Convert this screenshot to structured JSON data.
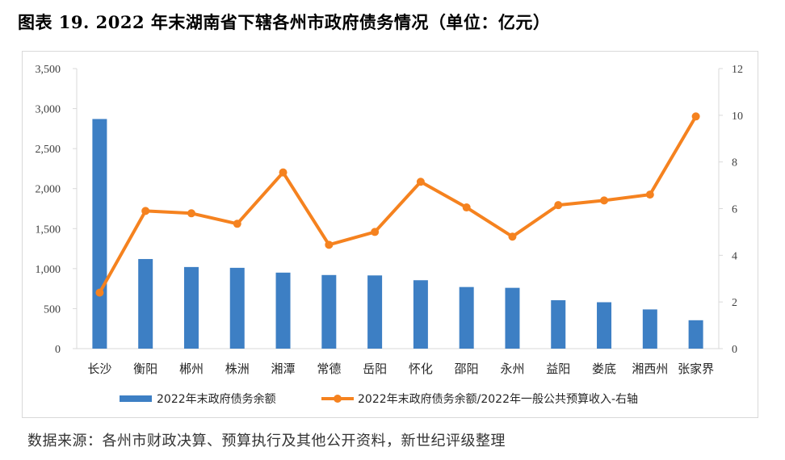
{
  "title": "图表 19. 2022 年末湖南省下辖各州市政府债务情况（单位：亿元）",
  "source": "数据来源：各州市财政决算、预算执行及其他公开资料，新世纪评级整理",
  "colors": {
    "bar": "#3d7fc4",
    "line": "#f5821f",
    "axis": "#d9d9d9",
    "text": "#404040"
  },
  "chart_data": {
    "type": "bar+line",
    "categories": [
      "长沙",
      "衡阳",
      "郴州",
      "株洲",
      "湘潭",
      "常德",
      "岳阳",
      "怀化",
      "邵阳",
      "永州",
      "益阳",
      "娄底",
      "湘西州",
      "张家界"
    ],
    "series": [
      {
        "name": "2022年末政府债务余额",
        "type": "bar",
        "axis": "left",
        "values": [
          2870,
          1120,
          1020,
          1010,
          950,
          920,
          915,
          855,
          770,
          760,
          605,
          580,
          490,
          355
        ]
      },
      {
        "name": "2022年末政府债务余额/2022年一般公共预算收入-右轴",
        "type": "line",
        "axis": "right",
        "values": [
          2.4,
          5.9,
          5.8,
          5.35,
          7.55,
          4.45,
          5.0,
          7.15,
          6.05,
          4.8,
          6.15,
          6.35,
          6.6,
          9.95
        ]
      }
    ],
    "y_left": {
      "min": 0,
      "max": 3500,
      "ticks": [
        "0",
        "500",
        "1,000",
        "1,500",
        "2,000",
        "2,500",
        "3,000",
        "3,500"
      ]
    },
    "y_right": {
      "min": 0,
      "max": 12,
      "ticks": [
        "0",
        "2",
        "4",
        "6",
        "8",
        "10",
        "12"
      ]
    },
    "legend": "bottom",
    "grid": false
  }
}
